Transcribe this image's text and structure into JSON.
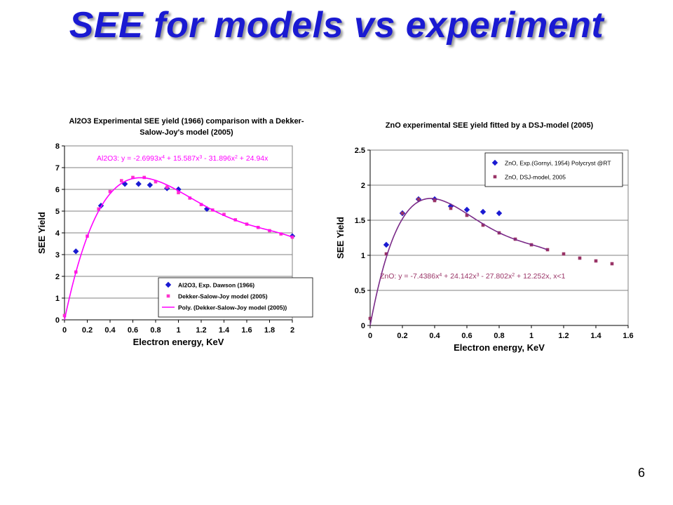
{
  "slide": {
    "title": "SEE for models vs experiment",
    "page_number": "6",
    "accent_color": "#1a1ad2"
  },
  "chart_data": [
    {
      "type": "scatter",
      "title_lines": [
        "Al2O3 Experimental SEE yield (1966) comparison with a Dekker-",
        "Salow-Joy's model (2005)"
      ],
      "xlabel": "Electron energy, KeV",
      "ylabel": "SEE Yield",
      "xlim": [
        0,
        2
      ],
      "ylim": [
        0,
        8
      ],
      "x_ticks": [
        0,
        0.2,
        0.4,
        0.6,
        0.8,
        1,
        1.2,
        1.4,
        1.6,
        1.8,
        2
      ],
      "x_tick_labels": [
        "0",
        "0.2",
        "0.4",
        "0.6",
        "0.8",
        "1",
        "1.2",
        "1.4",
        "1.6",
        "1.8",
        "2"
      ],
      "y_ticks": [
        0,
        1,
        2,
        3,
        4,
        5,
        6,
        7,
        8
      ],
      "y_tick_labels": [
        "0",
        "1",
        "2",
        "3",
        "4",
        "5",
        "6",
        "7",
        "8"
      ],
      "grid": "horizontal",
      "legend_position": "bottom-right",
      "annotation": {
        "text": "Al2O3: y = -2.6993x",
        "parts": [
          {
            "t": "Al2O3: y = -2.6993x"
          },
          {
            "t": "4",
            "sup": true
          },
          {
            "t": " + 15.587x"
          },
          {
            "t": "3",
            "sup": true
          },
          {
            "t": " - 31.896x"
          },
          {
            "t": "2",
            "sup": true
          },
          {
            "t": " + 24.94x"
          }
        ],
        "color": "#ff00ff"
      },
      "series": [
        {
          "name": "Al2O3, Exp. Dawson (1966)",
          "marker": "diamond",
          "color": "#1a1ad2",
          "x": [
            0.1,
            0.32,
            0.53,
            0.65,
            0.75,
            0.9,
            1.0,
            1.25,
            2.0
          ],
          "y": [
            3.15,
            5.25,
            6.25,
            6.25,
            6.2,
            6.05,
            6.0,
            5.1,
            3.85
          ]
        },
        {
          "name": "Dekker-Salow-Joy model (2005)",
          "marker": "square",
          "color": "#ff33cc",
          "x": [
            0,
            0.1,
            0.2,
            0.3,
            0.4,
            0.5,
            0.6,
            0.7,
            0.8,
            0.9,
            1.0,
            1.1,
            1.2,
            1.3,
            1.4,
            1.5,
            1.6,
            1.7,
            1.8,
            1.9,
            2.0
          ],
          "y": [
            0.2,
            2.2,
            3.85,
            5.1,
            5.9,
            6.4,
            6.55,
            6.55,
            6.35,
            6.1,
            5.85,
            5.6,
            5.3,
            5.05,
            4.85,
            4.6,
            4.4,
            4.25,
            4.1,
            3.95,
            3.8
          ]
        },
        {
          "name": "Poly. (Dekker-Salow-Joy model (2005))",
          "marker": "line",
          "color": "#ff00ff",
          "poly": [
            0,
            24.94,
            -31.896,
            15.587,
            -2.6993
          ]
        }
      ]
    },
    {
      "type": "scatter",
      "title_lines": [
        "ZnO experimental SEE yield fitted by a DSJ-model (2005)"
      ],
      "xlabel": "Electron energy, KeV",
      "ylabel": "SEE Yield",
      "xlim": [
        0,
        1.6
      ],
      "ylim": [
        0,
        2.5
      ],
      "x_ticks": [
        0,
        0.2,
        0.4,
        0.6,
        0.8,
        1,
        1.2,
        1.4,
        1.6
      ],
      "x_tick_labels": [
        "0",
        "0.2",
        "0.4",
        "0.6",
        "0.8",
        "1",
        "1.2",
        "1.4",
        "1.6"
      ],
      "y_ticks": [
        0,
        0.5,
        1,
        1.5,
        2,
        2.5
      ],
      "y_tick_labels": [
        "0",
        "0.5",
        "1",
        "1.5",
        "2",
        "2.5"
      ],
      "grid": "horizontal",
      "legend_position": "top-right",
      "annotation": {
        "text": "ZnO: y = -7.4386x",
        "parts": [
          {
            "t": "ZnO: y = -7.4386x"
          },
          {
            "t": "4",
            "sup": true
          },
          {
            "t": " + 24.142x"
          },
          {
            "t": "3",
            "sup": true
          },
          {
            "t": " - 27.802x"
          },
          {
            "t": "2",
            "sup": true
          },
          {
            "t": " + 12.252x, x<1"
          }
        ],
        "color": "#993366"
      },
      "series": [
        {
          "name": "ZnO, Exp.(Gornyi, 1954) Polycryst @RT",
          "marker": "diamond",
          "color": "#1a1ad2",
          "x": [
            0.1,
            0.2,
            0.3,
            0.4,
            0.5,
            0.6,
            0.7,
            0.8
          ],
          "y": [
            1.15,
            1.6,
            1.8,
            1.8,
            1.7,
            1.65,
            1.62,
            1.6
          ]
        },
        {
          "name": "ZnO, DSJ-model, 2005",
          "marker": "square",
          "color": "#993366",
          "x": [
            0.0,
            0.1,
            0.2,
            0.3,
            0.4,
            0.5,
            0.6,
            0.7,
            0.8,
            0.9,
            1.0,
            1.1,
            1.2,
            1.3,
            1.4,
            1.5
          ],
          "y": [
            0.1,
            1.02,
            1.6,
            1.8,
            1.78,
            1.67,
            1.57,
            1.43,
            1.32,
            1.23,
            1.15,
            1.08,
            1.02,
            0.96,
            0.92,
            0.88
          ]
        },
        {
          "name": "",
          "marker": "line",
          "color": "#7a2a88",
          "xmax": 1.1,
          "poly": [
            0,
            12.252,
            -27.802,
            24.142,
            -7.4386
          ]
        }
      ]
    }
  ]
}
